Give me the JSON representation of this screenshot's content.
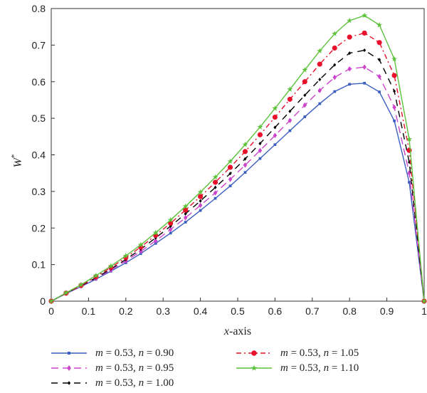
{
  "chart_data": {
    "type": "line",
    "title": "",
    "xlabel_italic": "x",
    "xlabel_rest": "-axis",
    "ylabel_main": "W",
    "ylabel_sup": "*",
    "xlim": [
      0,
      1
    ],
    "ylim": [
      0,
      0.8
    ],
    "xticks": [
      "0",
      "0.1",
      "0.2",
      "0.3",
      "0.4",
      "0.5",
      "0.6",
      "0.7",
      "0.8",
      "0.9",
      "1"
    ],
    "yticks": [
      "0",
      "0.1",
      "0.2",
      "0.3",
      "0.4",
      "0.5",
      "0.6",
      "0.7",
      "0.8"
    ],
    "grid": false,
    "legend_position": "bottom",
    "x": [
      0,
      0.04,
      0.08,
      0.12,
      0.16,
      0.2,
      0.24,
      0.28,
      0.32,
      0.36,
      0.4,
      0.44,
      0.48,
      0.52,
      0.56,
      0.6,
      0.64,
      0.68,
      0.72,
      0.76,
      0.8,
      0.84,
      0.88,
      0.92,
      0.96,
      1.0
    ],
    "series": [
      {
        "name": "m = 0.53, n = 0.90",
        "m_val": "0.53",
        "n_val": "0.90",
        "color": "#3a5fbf",
        "marker": "square",
        "dash": "",
        "values": [
          0,
          0.021,
          0.04,
          0.06,
          0.082,
          0.105,
          0.13,
          0.158,
          0.186,
          0.216,
          0.248,
          0.281,
          0.315,
          0.352,
          0.39,
          0.428,
          0.466,
          0.504,
          0.54,
          0.573,
          0.593,
          0.596,
          0.572,
          0.493,
          0.325,
          0
        ]
      },
      {
        "name": "m = 0.53, n = 0.95",
        "m_val": "0.53",
        "n_val": "0.95",
        "color": "#cc44cc",
        "marker": "diamond",
        "dash": "10,6",
        "values": [
          0,
          0.021,
          0.041,
          0.062,
          0.085,
          0.11,
          0.136,
          0.165,
          0.196,
          0.228,
          0.262,
          0.296,
          0.333,
          0.372,
          0.412,
          0.453,
          0.494,
          0.536,
          0.576,
          0.612,
          0.635,
          0.64,
          0.614,
          0.53,
          0.35,
          0
        ]
      },
      {
        "name": "m = 0.53, n = 1.00",
        "m_val": "0.53",
        "n_val": "1.00",
        "color": "#000000",
        "marker": "diamond-small",
        "dash": "9,7",
        "values": [
          0,
          0.022,
          0.042,
          0.064,
          0.088,
          0.114,
          0.142,
          0.173,
          0.205,
          0.239,
          0.274,
          0.311,
          0.349,
          0.389,
          0.431,
          0.475,
          0.519,
          0.563,
          0.606,
          0.646,
          0.678,
          0.686,
          0.66,
          0.574,
          0.38,
          0
        ]
      },
      {
        "name": "m = 0.53, n = 1.05",
        "m_val": "0.53",
        "n_val": "1.05",
        "color": "#e8102a",
        "marker": "circle",
        "dash": "7,4,2,4",
        "values": [
          0,
          0.022,
          0.043,
          0.067,
          0.092,
          0.119,
          0.148,
          0.18,
          0.213,
          0.249,
          0.286,
          0.325,
          0.366,
          0.409,
          0.455,
          0.503,
          0.552,
          0.6,
          0.648,
          0.692,
          0.722,
          0.733,
          0.707,
          0.617,
          0.412,
          0
        ]
      },
      {
        "name": "m = 0.53, n = 1.10",
        "m_val": "0.53",
        "n_val": "1.10",
        "color": "#5cc23a",
        "marker": "star",
        "dash": "",
        "values": [
          0,
          0.023,
          0.045,
          0.07,
          0.096,
          0.124,
          0.154,
          0.187,
          0.222,
          0.259,
          0.298,
          0.339,
          0.382,
          0.428,
          0.476,
          0.527,
          0.579,
          0.632,
          0.684,
          0.731,
          0.767,
          0.781,
          0.755,
          0.662,
          0.443,
          0
        ]
      }
    ]
  }
}
